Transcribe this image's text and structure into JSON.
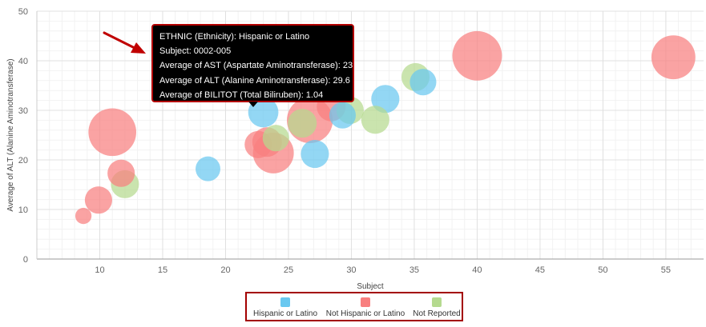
{
  "chart_data": {
    "type": "scatter",
    "xlabel": "Subject",
    "ylabel": "Average of ALT (Alanine Aminotransferase)",
    "xlim": [
      5,
      58
    ],
    "ylim": [
      0,
      50
    ],
    "x_ticks": [
      "10",
      "15",
      "20",
      "25",
      "30",
      "35",
      "40",
      "45",
      "50",
      "55"
    ],
    "y_ticks": [
      "0",
      "10",
      "20",
      "30",
      "40",
      "50"
    ],
    "grid": true,
    "bubble": true,
    "legend_position": "bottom",
    "series": [
      {
        "name": "Hispanic or Latino",
        "color": "#69c8f0",
        "points": [
          {
            "x": 18.6,
            "y": 18.2,
            "size": 0.7
          },
          {
            "x": 23.0,
            "y": 29.6,
            "size": 1.04
          },
          {
            "x": 27.1,
            "y": 21.2,
            "size": 0.9
          },
          {
            "x": 29.3,
            "y": 29.0,
            "size": 0.8
          },
          {
            "x": 32.7,
            "y": 32.3,
            "size": 0.9
          },
          {
            "x": 35.7,
            "y": 35.7,
            "size": 0.8
          }
        ]
      },
      {
        "name": "Not Hispanic or Latino",
        "color": "#f87f7f",
        "points": [
          {
            "x": 8.7,
            "y": 8.7,
            "size": 0.3
          },
          {
            "x": 9.9,
            "y": 11.9,
            "size": 0.85
          },
          {
            "x": 11.0,
            "y": 25.6,
            "size": 2.6
          },
          {
            "x": 11.7,
            "y": 17.3,
            "size": 0.85
          },
          {
            "x": 22.6,
            "y": 23.1,
            "size": 0.85
          },
          {
            "x": 23.3,
            "y": 23.6,
            "size": 1.0
          },
          {
            "x": 23.8,
            "y": 21.4,
            "size": 1.9
          },
          {
            "x": 26.7,
            "y": 28.0,
            "size": 2.4
          },
          {
            "x": 28.4,
            "y": 30.7,
            "size": 0.95
          },
          {
            "x": 40.0,
            "y": 41.0,
            "size": 2.8
          },
          {
            "x": 55.6,
            "y": 40.7,
            "size": 2.2
          }
        ]
      },
      {
        "name": "Not Reported",
        "color": "#b5da8f",
        "points": [
          {
            "x": 12.0,
            "y": 15.1,
            "size": 0.9
          },
          {
            "x": 24.0,
            "y": 24.4,
            "size": 0.8
          },
          {
            "x": 26.1,
            "y": 27.4,
            "size": 0.95
          },
          {
            "x": 29.9,
            "y": 30.0,
            "size": 0.85
          },
          {
            "x": 31.9,
            "y": 28.1,
            "size": 0.9
          },
          {
            "x": 35.1,
            "y": 36.7,
            "size": 0.9
          }
        ]
      }
    ]
  },
  "tooltip": {
    "lines": [
      "ETHNIC (Ethnicity): Hispanic or Latino",
      "Subject: 0002-005",
      "Average of AST (Aspartate Aminotransferase): 23",
      "Average of ALT (Alanine Aminotransferase): 29.6",
      "Average of BILITOT (Total Biliruben): 1.04"
    ]
  },
  "legend": {
    "items": [
      {
        "label": "Hispanic or Latino",
        "color": "#69c8f0"
      },
      {
        "label": "Not Hispanic or Latino",
        "color": "#f87f7f"
      },
      {
        "label": "Not Reported",
        "color": "#b5da8f"
      }
    ]
  },
  "annotation": {
    "arrow_color": "#c00000",
    "highlight_color": "#b30000"
  }
}
